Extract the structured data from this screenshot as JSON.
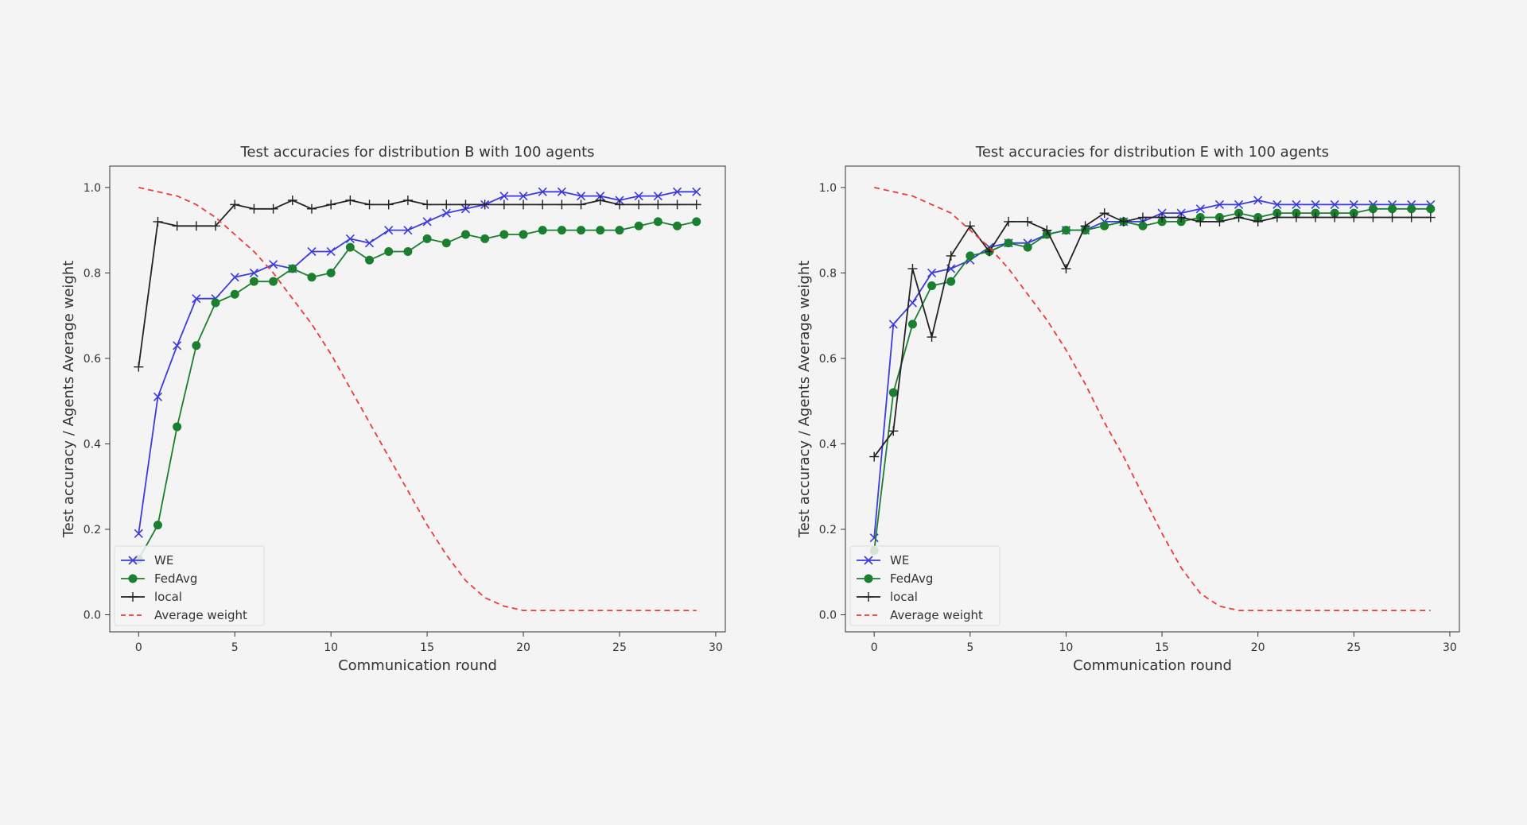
{
  "chart_data": [
    {
      "type": "line",
      "title": "Test accuracies for distribution B with 100 agents",
      "xlabel": "Communication round",
      "ylabel": "Test accuracy / Agents Average weight",
      "xlim": [
        -1.5,
        30.5
      ],
      "ylim": [
        -0.04,
        1.05
      ],
      "xticks": [
        0,
        5,
        10,
        15,
        20,
        25,
        30
      ],
      "yticks": [
        0.0,
        0.2,
        0.4,
        0.6,
        0.8,
        1.0
      ],
      "grid": false,
      "legend": "lower-left",
      "x": [
        0,
        1,
        2,
        3,
        4,
        5,
        6,
        7,
        8,
        9,
        10,
        11,
        12,
        13,
        14,
        15,
        16,
        17,
        18,
        19,
        20,
        21,
        22,
        23,
        24,
        25,
        26,
        27,
        28,
        29
      ],
      "series": [
        {
          "name": "WE",
          "color": "#3b3bdf",
          "marker": "x",
          "dash": "",
          "values": [
            0.19,
            0.51,
            0.63,
            0.74,
            0.74,
            0.79,
            0.8,
            0.82,
            0.81,
            0.85,
            0.85,
            0.88,
            0.87,
            0.9,
            0.9,
            0.92,
            0.94,
            0.95,
            0.96,
            0.98,
            0.98,
            0.99,
            0.99,
            0.98,
            0.98,
            0.97,
            0.98,
            0.98,
            0.99,
            0.99
          ]
        },
        {
          "name": "FedAvg",
          "color": "#1a7f2e",
          "marker": "o",
          "dash": "",
          "values": [
            0.13,
            0.21,
            0.44,
            0.63,
            0.73,
            0.75,
            0.78,
            0.78,
            0.81,
            0.79,
            0.8,
            0.86,
            0.83,
            0.85,
            0.85,
            0.88,
            0.87,
            0.89,
            0.88,
            0.89,
            0.89,
            0.9,
            0.9,
            0.9,
            0.9,
            0.9,
            0.91,
            0.92,
            0.91,
            0.92
          ]
        },
        {
          "name": "local",
          "color": "#222222",
          "marker": "+",
          "dash": "",
          "values": [
            0.58,
            0.92,
            0.91,
            0.91,
            0.91,
            0.96,
            0.95,
            0.95,
            0.97,
            0.95,
            0.96,
            0.97,
            0.96,
            0.96,
            0.97,
            0.96,
            0.96,
            0.96,
            0.96,
            0.96,
            0.96,
            0.96,
            0.96,
            0.96,
            0.97,
            0.96,
            0.96,
            0.96,
            0.96,
            0.96
          ]
        },
        {
          "name": "Average weight",
          "color": "#f03a3a",
          "marker": "",
          "dash": "7,5",
          "values": [
            1.0,
            0.99,
            0.98,
            0.96,
            0.93,
            0.89,
            0.85,
            0.8,
            0.74,
            0.68,
            0.61,
            0.53,
            0.45,
            0.37,
            0.29,
            0.21,
            0.14,
            0.08,
            0.04,
            0.02,
            0.01,
            0.01,
            0.01,
            0.01,
            0.01,
            0.01,
            0.01,
            0.01,
            0.01,
            0.01
          ]
        }
      ]
    },
    {
      "type": "line",
      "title": "Test accuracies for distribution E with 100 agents",
      "xlabel": "Communication round",
      "ylabel": "Test accuracy / Agents Average weight",
      "xlim": [
        -1.5,
        30.5
      ],
      "ylim": [
        -0.04,
        1.05
      ],
      "xticks": [
        0,
        5,
        10,
        15,
        20,
        25,
        30
      ],
      "yticks": [
        0.0,
        0.2,
        0.4,
        0.6,
        0.8,
        1.0
      ],
      "grid": false,
      "legend": "lower-left",
      "x": [
        0,
        1,
        2,
        3,
        4,
        5,
        6,
        7,
        8,
        9,
        10,
        11,
        12,
        13,
        14,
        15,
        16,
        17,
        18,
        19,
        20,
        21,
        22,
        23,
        24,
        25,
        26,
        27,
        28,
        29
      ],
      "series": [
        {
          "name": "WE",
          "color": "#3b3bdf",
          "marker": "x",
          "dash": "",
          "values": [
            0.18,
            0.68,
            0.73,
            0.8,
            0.81,
            0.83,
            0.86,
            0.87,
            0.87,
            0.89,
            0.9,
            0.9,
            0.92,
            0.92,
            0.92,
            0.94,
            0.94,
            0.95,
            0.96,
            0.96,
            0.97,
            0.96,
            0.96,
            0.96,
            0.96,
            0.96,
            0.96,
            0.96,
            0.96,
            0.96
          ]
        },
        {
          "name": "FedAvg",
          "color": "#1a7f2e",
          "marker": "o",
          "dash": "",
          "values": [
            0.15,
            0.52,
            0.68,
            0.77,
            0.78,
            0.84,
            0.85,
            0.87,
            0.86,
            0.89,
            0.9,
            0.9,
            0.91,
            0.92,
            0.91,
            0.92,
            0.92,
            0.93,
            0.93,
            0.94,
            0.93,
            0.94,
            0.94,
            0.94,
            0.94,
            0.94,
            0.95,
            0.95,
            0.95,
            0.95
          ]
        },
        {
          "name": "local",
          "color": "#222222",
          "marker": "+",
          "dash": "",
          "values": [
            0.37,
            0.43,
            0.81,
            0.65,
            0.84,
            0.91,
            0.85,
            0.92,
            0.92,
            0.9,
            0.81,
            0.91,
            0.94,
            0.92,
            0.93,
            0.93,
            0.93,
            0.92,
            0.92,
            0.93,
            0.92,
            0.93,
            0.93,
            0.93,
            0.93,
            0.93,
            0.93,
            0.93,
            0.93,
            0.93
          ]
        },
        {
          "name": "Average weight",
          "color": "#f03a3a",
          "marker": "",
          "dash": "7,5",
          "values": [
            1.0,
            0.99,
            0.98,
            0.96,
            0.94,
            0.9,
            0.86,
            0.81,
            0.75,
            0.69,
            0.62,
            0.54,
            0.45,
            0.37,
            0.28,
            0.19,
            0.11,
            0.05,
            0.02,
            0.01,
            0.01,
            0.01,
            0.01,
            0.01,
            0.01,
            0.01,
            0.01,
            0.01,
            0.01,
            0.01
          ]
        }
      ]
    }
  ]
}
